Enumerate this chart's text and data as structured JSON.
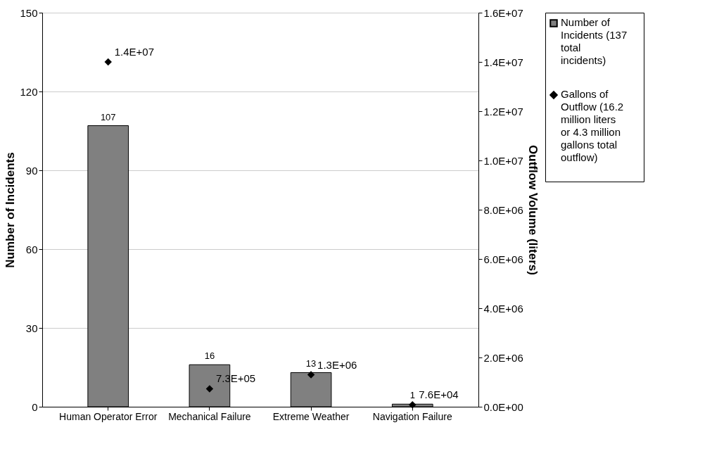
{
  "chart_data": {
    "type": "bar",
    "categories": [
      "Human Operator Error",
      "Mechanical Failure",
      "Extreme Weather",
      "Navigation Failure"
    ],
    "series": [
      {
        "name": "Number of Incidents (137 total incidents)",
        "color": "#808080",
        "values": [
          107,
          16,
          13,
          1
        ],
        "value_labels": [
          "107",
          "16",
          "13",
          "1"
        ]
      },
      {
        "name": "Gallons of Outflow (16.2 million liters or 4.3 million gallons total outflow)",
        "type": "scatter",
        "axis": "y2",
        "color": "#000000",
        "values": [
          14000000,
          730000,
          1300000,
          76000
        ],
        "value_labels": [
          "1.4E+07",
          "7.3E+05",
          "1.3E+06",
          "7.6E+04"
        ]
      }
    ],
    "ylabel": "Number of Incidents",
    "y2label": "Outflow Volume (liters)",
    "ylim": [
      0,
      150
    ],
    "yticks": [
      0,
      30,
      60,
      90,
      120,
      150
    ],
    "y2lim": [
      0,
      16000000
    ],
    "y2ticks": [
      {
        "value": 0,
        "label": "0.0E+00"
      },
      {
        "value": 2000000,
        "label": "2.0E+06"
      },
      {
        "value": 4000000,
        "label": "4.0E+06"
      },
      {
        "value": 6000000,
        "label": "6.0E+06"
      },
      {
        "value": 8000000,
        "label": "8.0E+06"
      },
      {
        "value": 10000000,
        "label": "1.0E+07"
      },
      {
        "value": 12000000,
        "label": "1.2E+07"
      },
      {
        "value": 14000000,
        "label": "1.4E+07"
      },
      {
        "value": 16000000,
        "label": "1.6E+07"
      }
    ],
    "grid": "y",
    "legend": "right",
    "marker": "diamond"
  }
}
